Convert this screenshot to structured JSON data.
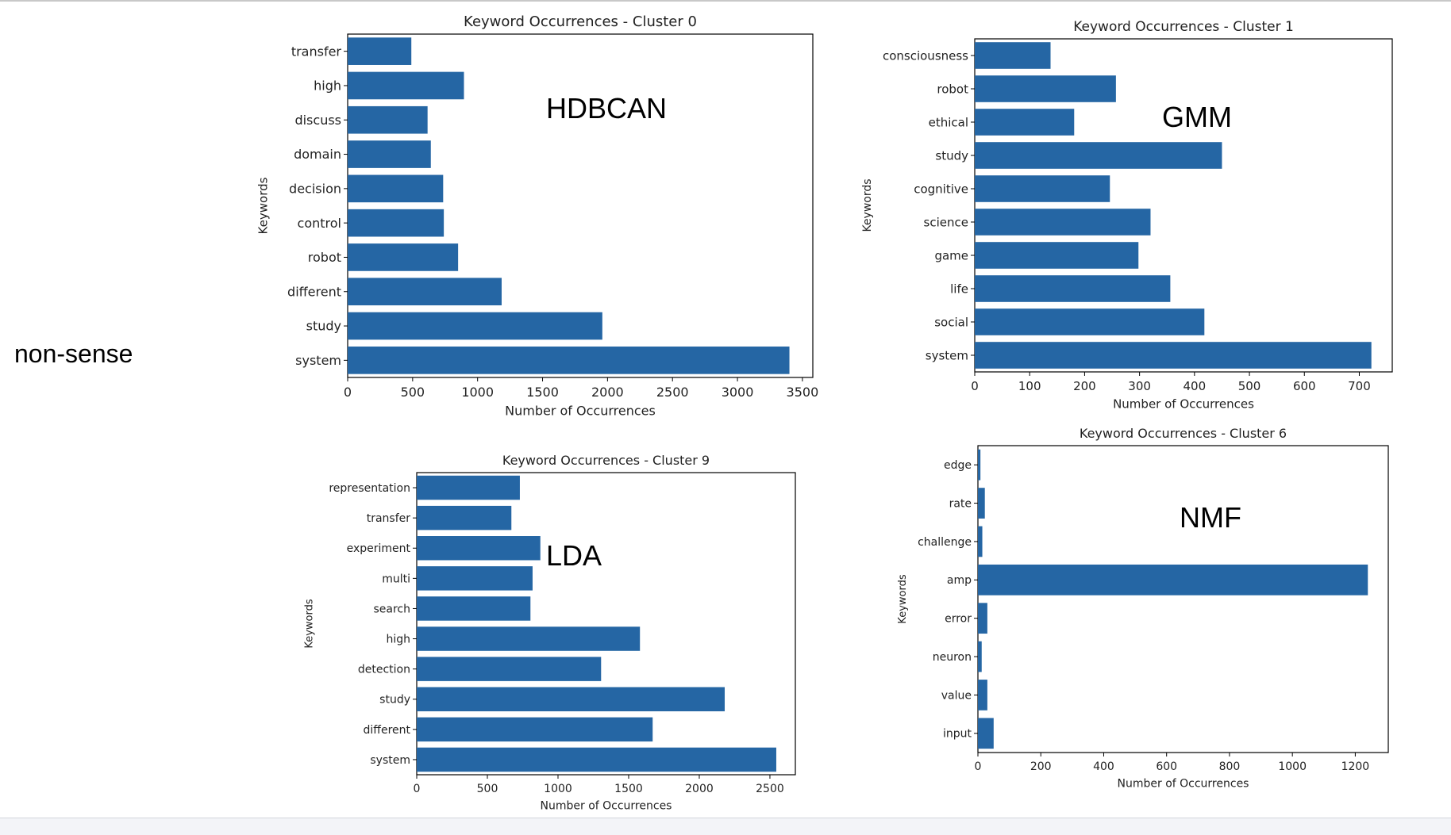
{
  "page": {
    "side_label": "non-sense",
    "annotations": [
      "HDBCAN",
      "GMM",
      "LDA",
      "NMF"
    ]
  },
  "colors": {
    "bar": "#2566a4",
    "axis": "#000000",
    "text": "#222222"
  },
  "chart_data": [
    {
      "type": "bar",
      "orientation": "horizontal",
      "title": "Keyword Occurrences - Cluster 0",
      "xlabel": "Number of Occurrences",
      "ylabel": "Keywords",
      "categories": [
        "system",
        "study",
        "different",
        "robot",
        "control",
        "decision",
        "domain",
        "discuss",
        "high",
        "transfer"
      ],
      "values": [
        3400,
        1960,
        1185,
        850,
        740,
        735,
        640,
        615,
        895,
        490
      ],
      "xlim": [
        0,
        3580
      ],
      "xticks": [
        0,
        500,
        1000,
        1500,
        2000,
        2500,
        3000,
        3500
      ]
    },
    {
      "type": "bar",
      "orientation": "horizontal",
      "title": "Keyword Occurrences - Cluster 1",
      "xlabel": "Number of Occurrences",
      "ylabel": "Keywords",
      "categories": [
        "system",
        "social",
        "life",
        "game",
        "science",
        "cognitive",
        "study",
        "ethical",
        "robot",
        "consciousness"
      ],
      "values": [
        722,
        418,
        356,
        298,
        320,
        246,
        450,
        181,
        257,
        138
      ],
      "xlim": [
        0,
        760
      ],
      "xticks": [
        0,
        100,
        200,
        300,
        400,
        500,
        600,
        700
      ]
    },
    {
      "type": "bar",
      "orientation": "horizontal",
      "title": "Keyword Occurrences - Cluster 9",
      "xlabel": "Number of Occurrences",
      "ylabel": "Keywords",
      "categories": [
        "system",
        "different",
        "study",
        "detection",
        "high",
        "search",
        "multi",
        "experiment",
        "transfer",
        "representation"
      ],
      "values": [
        2545,
        1670,
        2180,
        1305,
        1580,
        805,
        820,
        875,
        670,
        730
      ],
      "xlim": [
        0,
        2680
      ],
      "xticks": [
        0,
        500,
        1000,
        1500,
        2000,
        2500
      ]
    },
    {
      "type": "bar",
      "orientation": "horizontal",
      "title": "Keyword Occurrences - Cluster 6",
      "xlabel": "Number of Occurrences",
      "ylabel": "Keywords",
      "categories": [
        "input",
        "value",
        "neuron",
        "error",
        "amp",
        "challenge",
        "rate",
        "edge"
      ],
      "values": [
        50,
        30,
        12,
        30,
        1240,
        14,
        22,
        8
      ],
      "xlim": [
        0,
        1305
      ],
      "xticks": [
        0,
        200,
        400,
        600,
        800,
        1000,
        1200
      ]
    }
  ]
}
